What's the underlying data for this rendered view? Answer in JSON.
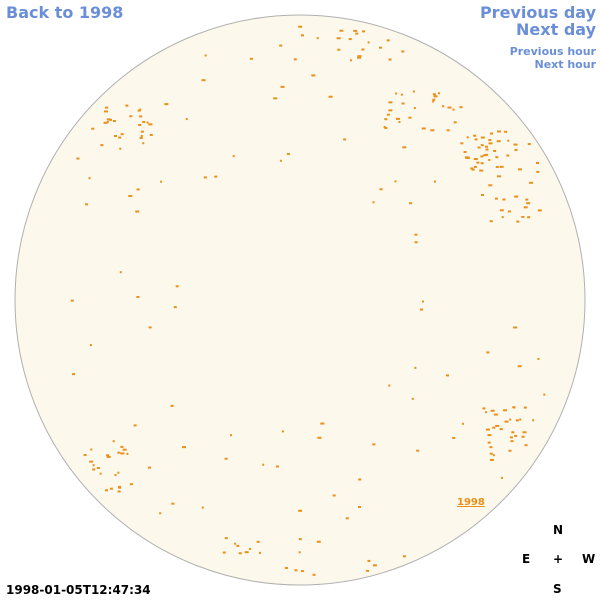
{
  "nav": {
    "back": "Back to 1998",
    "previous_day": "Previous day",
    "next_day": "Next day",
    "previous_hour": "Previous hour",
    "next_hour": "Next hour"
  },
  "image": {
    "timestamp": "1998-01-05T12:47:34",
    "label": "1998"
  },
  "compass": {
    "north": "N",
    "east": "E",
    "center": "+",
    "west": "W",
    "south": "S"
  }
}
